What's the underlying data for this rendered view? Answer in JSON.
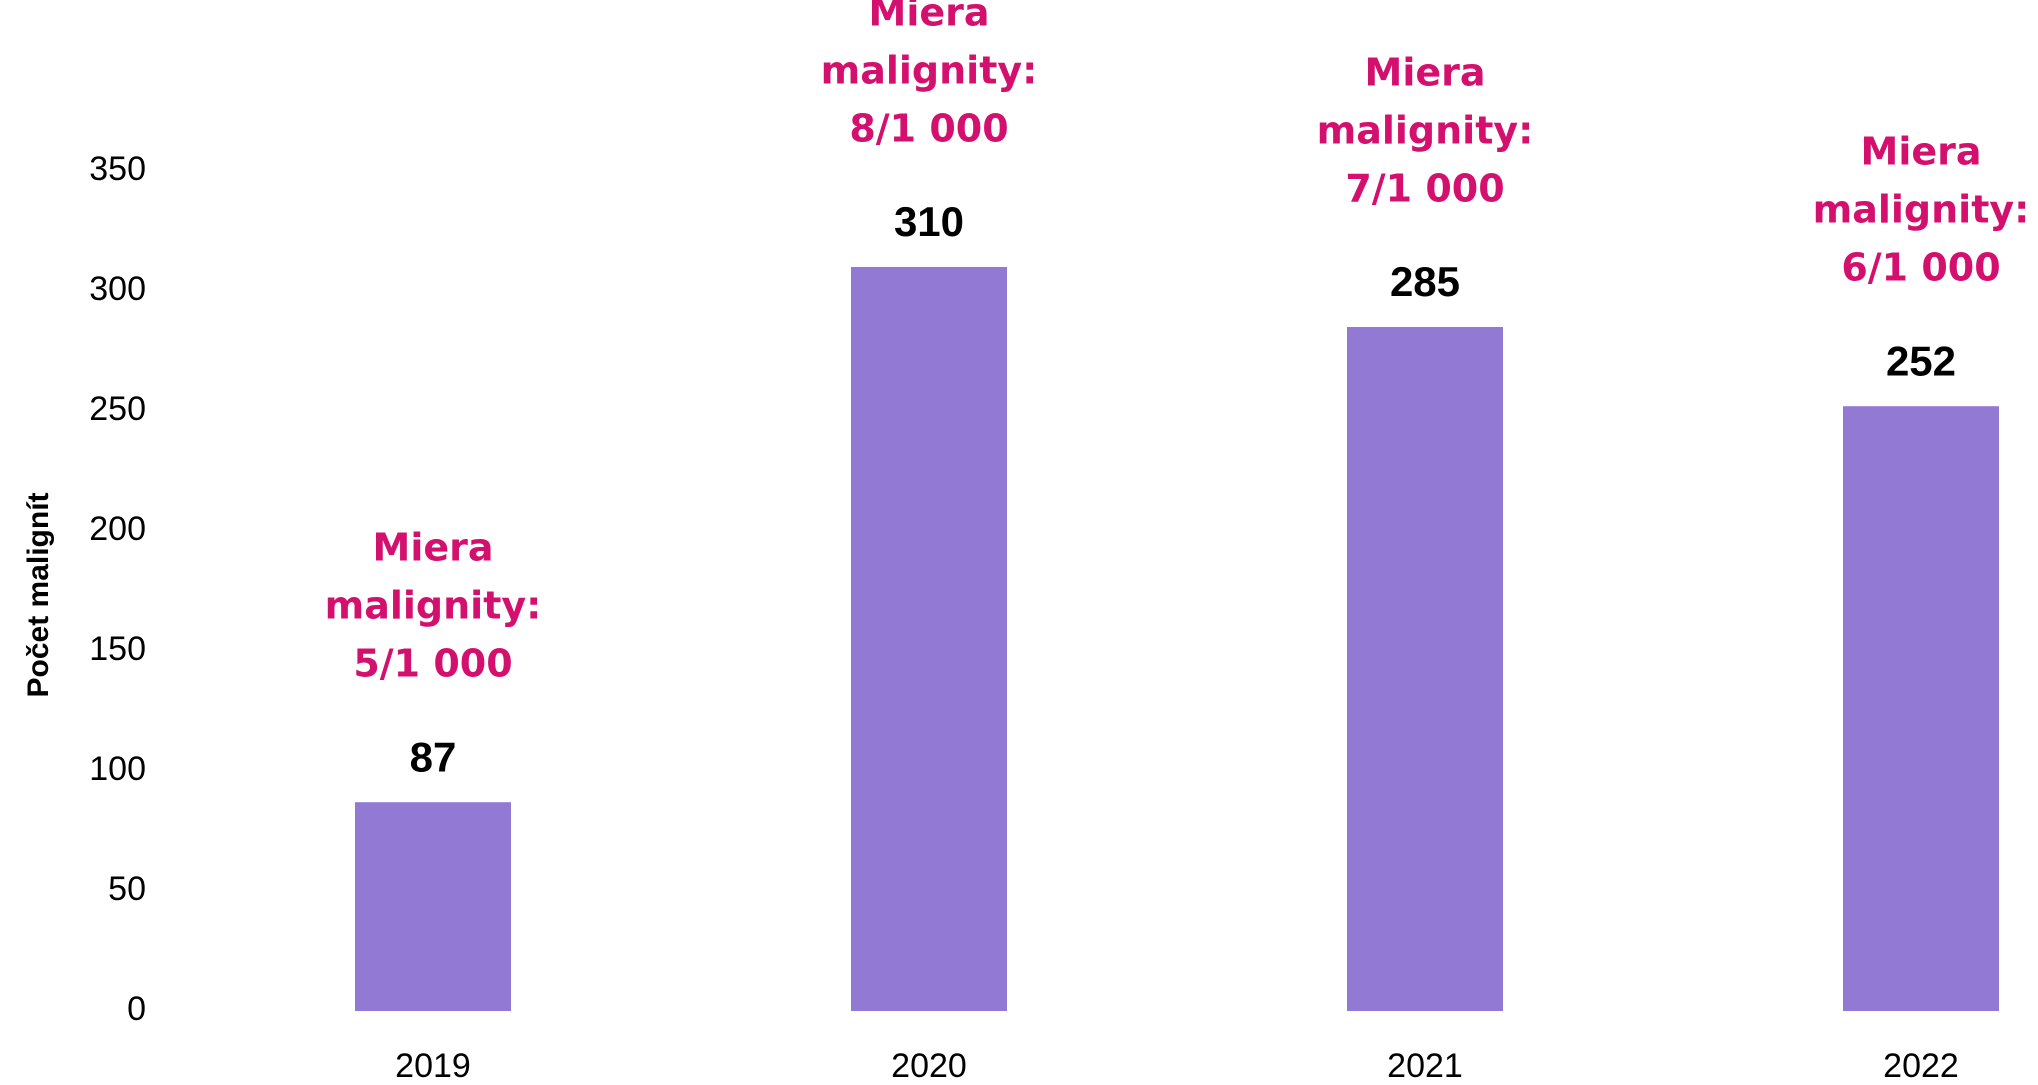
{
  "chart_data": {
    "type": "bar",
    "y_axis_label": "Počet malignít",
    "categories": [
      "2019",
      "2020",
      "2021",
      "2022"
    ],
    "values": [
      87,
      310,
      285,
      252
    ],
    "color": "#9179d4",
    "annotation_color": "#d4106e",
    "annotations": [
      [
        "Miera",
        "malignity:",
        "5/1 000"
      ],
      [
        "Miera",
        "malignity:",
        "8/1 000"
      ],
      [
        "Miera",
        "malignity:",
        "7/1 000"
      ],
      [
        "Miera",
        "malignity:",
        "6/1 000"
      ]
    ],
    "ylim": [
      0,
      350
    ],
    "yticks": [
      0,
      50,
      100,
      150,
      200,
      250,
      300,
      350
    ],
    "grid": false
  }
}
